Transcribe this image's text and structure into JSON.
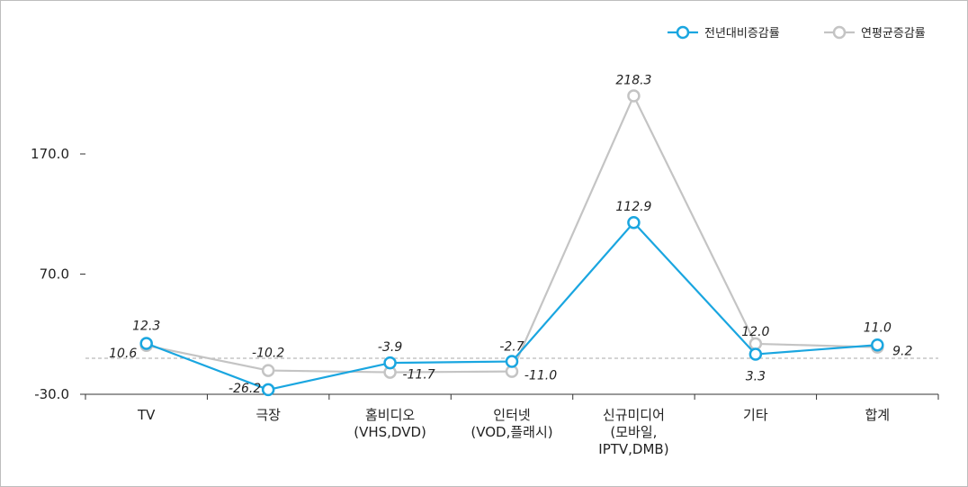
{
  "chart_data": {
    "type": "line",
    "categories": [
      [
        "TV"
      ],
      [
        "극장"
      ],
      [
        "홈비디오",
        "(VHS,DVD)"
      ],
      [
        "인터넷",
        "(VOD,플래시)"
      ],
      [
        "신규미디어",
        "(모바일,",
        "IPTV,DMB)"
      ],
      [
        "기타"
      ],
      [
        "합계"
      ]
    ],
    "yticks": [
      "170.0",
      "70.0",
      "-30.0"
    ],
    "ytick_values": [
      170,
      70,
      -30
    ],
    "ylim": [
      -30,
      230
    ],
    "zero_line": true,
    "series": [
      {
        "name": "전년대비증감률",
        "color": "#1aa6e0",
        "values": [
          12.3,
          -26.2,
          -3.9,
          -2.7,
          112.9,
          3.3,
          11.0
        ],
        "labels": [
          "12.3",
          "-26.2",
          "-3.9",
          "-2.7",
          "112.9",
          "3.3",
          "11.0"
        ]
      },
      {
        "name": "연평균증감률",
        "color": "#c4c4c4",
        "values": [
          10.6,
          -10.2,
          -11.7,
          -11.0,
          218.3,
          12.0,
          9.2
        ],
        "labels": [
          "10.6",
          "-10.2",
          "-11.7",
          "-11.0",
          "218.3",
          "12.0",
          "9.2"
        ]
      }
    ],
    "legend_position": "top-right"
  }
}
